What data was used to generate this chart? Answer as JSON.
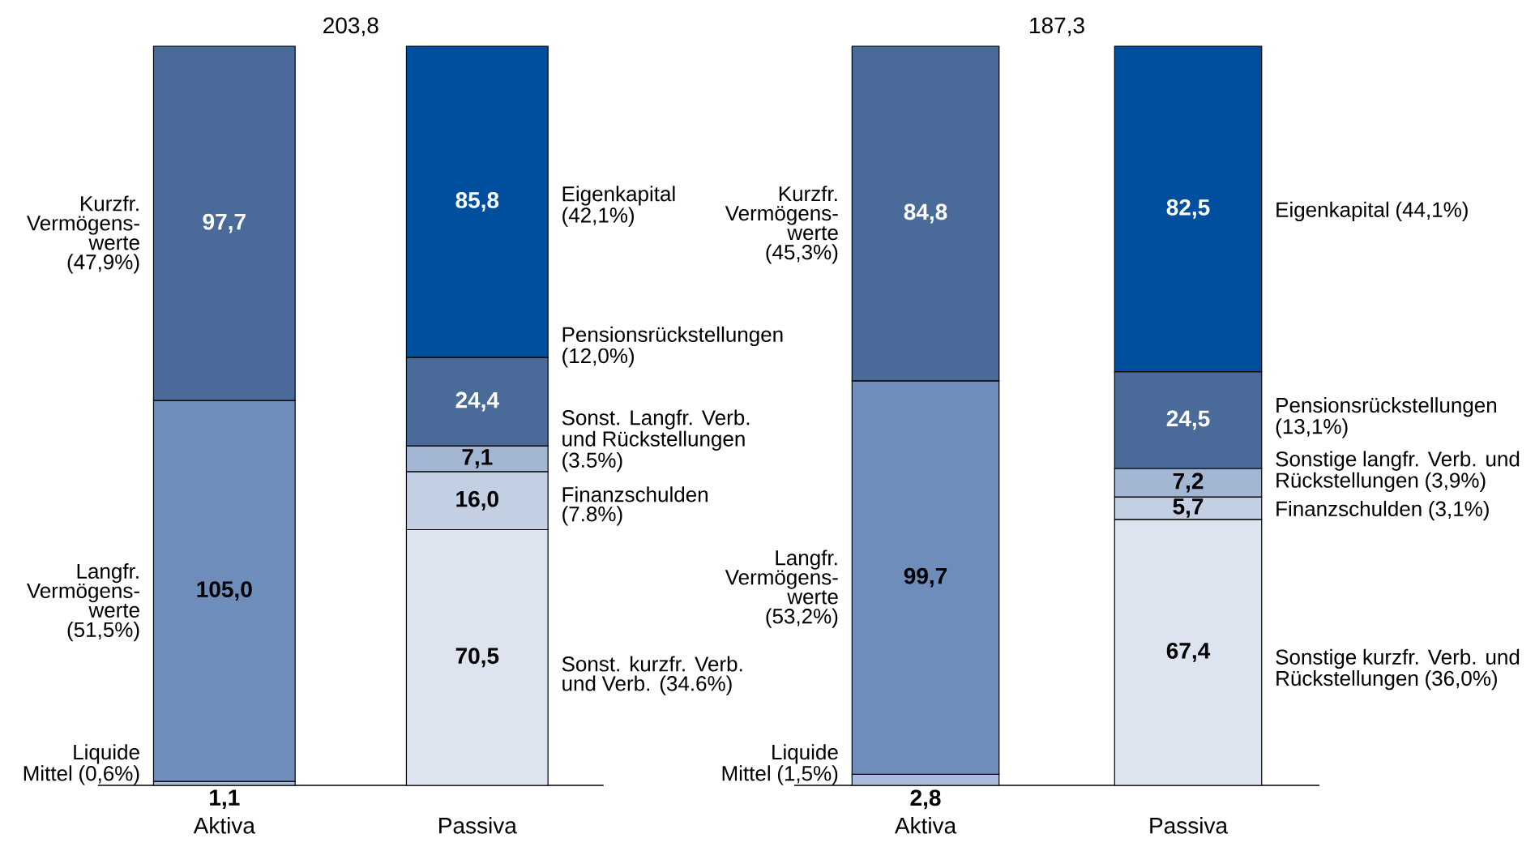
{
  "chart_data": [
    {
      "type": "bar",
      "stacked": true,
      "categories": [
        "Aktiva",
        "Passiva"
      ],
      "annotations": [
        "203,8"
      ],
      "series": [
        {
          "name": "Liquide Mittel (0,6%)",
          "color": "#a9bcd9",
          "values": [
            1.1,
            null
          ],
          "value_labels": [
            "1,1",
            null
          ]
        },
        {
          "name": "Langfr. Vermögens-werte (51,5%)",
          "color": "#6f8dba",
          "values": [
            105.0,
            null
          ],
          "value_labels": [
            "105,0",
            null
          ]
        },
        {
          "name": "Kurzfr. Vermögens-werte (47,9%)",
          "color": "#4a6a9a",
          "values": [
            97.7,
            null
          ],
          "value_labels": [
            "97,7",
            null
          ]
        },
        {
          "name": "Sonst. kurzfr. Verb. und Verb. (34.6%)",
          "color": "#dde4f0",
          "values": [
            null,
            70.5
          ],
          "value_labels": [
            null,
            "70,5"
          ]
        },
        {
          "name": "Finanzschulden (7.8%)",
          "color": "#c3cfe2",
          "values": [
            null,
            16.0
          ],
          "value_labels": [
            null,
            "16,0"
          ]
        },
        {
          "name": "Sonst. Langfr. Verb. und Rückstellungen (3.5%)",
          "color": "#a3b6d4",
          "values": [
            null,
            7.1
          ],
          "value_labels": [
            null,
            "7,1"
          ]
        },
        {
          "name": "Pensionsrückstellungen (12,0%)",
          "color": "#4a6a9a",
          "values": [
            null,
            24.4
          ],
          "value_labels": [
            null,
            "24,4"
          ]
        },
        {
          "name": "Eigenkapital (42,1%)",
          "color": "#004f9f",
          "values": [
            null,
            85.8
          ],
          "value_labels": [
            null,
            "85,8"
          ]
        }
      ]
    },
    {
      "type": "bar",
      "stacked": true,
      "categories": [
        "Aktiva",
        "Passiva"
      ],
      "annotations": [
        "187,3"
      ],
      "series": [
        {
          "name": "Liquide Mittel (1,5%)",
          "color": "#a9bcd9",
          "values": [
            2.8,
            null
          ],
          "value_labels": [
            "2,8",
            null
          ]
        },
        {
          "name": "Langfr. Vermögens-werte (53,2%)",
          "color": "#6f8dba",
          "values": [
            99.7,
            null
          ],
          "value_labels": [
            "99,7",
            null
          ]
        },
        {
          "name": "Kurzfr. Vermögens-werte (45,3%)",
          "color": "#4a6a9a",
          "values": [
            84.8,
            null
          ],
          "value_labels": [
            "84,8",
            null
          ]
        },
        {
          "name": "Sonstige kurzfr. Verb. und Rückstellungen (36,0%)",
          "color": "#dde4f0",
          "values": [
            null,
            67.4
          ],
          "value_labels": [
            null,
            "67,4"
          ]
        },
        {
          "name": "Finanzschulden (3,1%)",
          "color": "#c3cfe2",
          "values": [
            null,
            5.7
          ],
          "value_labels": [
            null,
            "5,7"
          ]
        },
        {
          "name": "Sonstige langfr. Verb. und Rückstellungen (3,9%)",
          "color": "#a3b6d4",
          "values": [
            null,
            7.2
          ],
          "value_labels": [
            null,
            "7,2"
          ]
        },
        {
          "name": "Pensionsrückstellungen (13,1%)",
          "color": "#4a6a9a",
          "values": [
            null,
            24.5
          ],
          "value_labels": [
            null,
            "24,5"
          ]
        },
        {
          "name": "Eigenkapital (44,1%)",
          "color": "#004f9f",
          "values": [
            null,
            82.5
          ],
          "value_labels": [
            null,
            "82,5"
          ]
        }
      ]
    }
  ]
}
